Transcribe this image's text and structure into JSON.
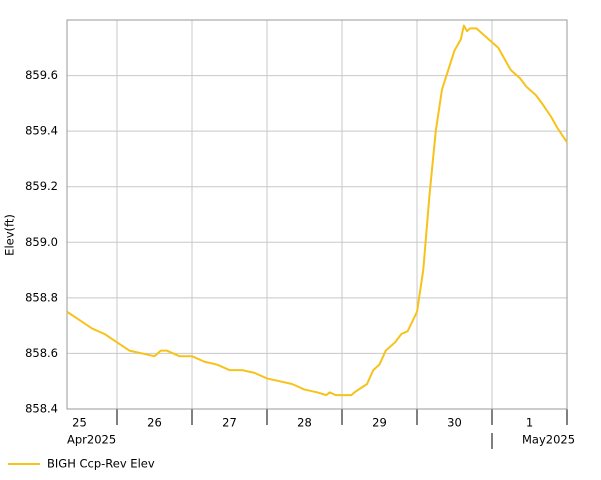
{
  "chart_data": {
    "type": "line",
    "y_label": "Elev(ft)",
    "xlim": [
      "2025-04-25T08:00",
      "2025-05-02T00:00"
    ],
    "xticks": [
      {
        "value": "2025-04-25T12:00",
        "label": "25"
      },
      {
        "value": "2025-04-26T12:00",
        "label": "26"
      },
      {
        "value": "2025-04-27T12:00",
        "label": "27"
      },
      {
        "value": "2025-04-28T12:00",
        "label": "28"
      },
      {
        "value": "2025-04-29T12:00",
        "label": "29"
      },
      {
        "value": "2025-04-30T12:00",
        "label": "30"
      },
      {
        "value": "2025-05-01T12:00",
        "label": "1"
      }
    ],
    "xgrid": [
      "2025-04-26T00:00",
      "2025-04-27T00:00",
      "2025-04-28T00:00",
      "2025-04-29T00:00",
      "2025-04-30T00:00",
      "2025-05-01T00:00",
      "2025-05-02T00:00"
    ],
    "month_labels": [
      {
        "value": "2025-04-25T08:00",
        "label": "Apr2025"
      },
      {
        "value": "2025-05-01T00:00",
        "label": "May2025"
      }
    ],
    "ylim": [
      858.4,
      859.8
    ],
    "yticks": [
      {
        "value": 858.4,
        "label": "858.4"
      },
      {
        "value": 858.6,
        "label": "858.6"
      },
      {
        "value": 858.8,
        "label": "858.8"
      },
      {
        "value": 859.0,
        "label": "859.0"
      },
      {
        "value": 859.2,
        "label": "859.2"
      },
      {
        "value": 859.4,
        "label": "859.4"
      },
      {
        "value": 859.6,
        "label": "859.6"
      }
    ],
    "grid": true,
    "legend": "bottom-left",
    "x": [
      "2025-04-25T08:00",
      "2025-04-25T12:00",
      "2025-04-25T16:00",
      "2025-04-25T20:00",
      "2025-04-26T00:00",
      "2025-04-26T04:00",
      "2025-04-26T08:00",
      "2025-04-26T12:00",
      "2025-04-26T14:00",
      "2025-04-26T16:00",
      "2025-04-26T20:00",
      "2025-04-27T00:00",
      "2025-04-27T04:00",
      "2025-04-27T08:00",
      "2025-04-27T12:00",
      "2025-04-27T16:00",
      "2025-04-27T20:00",
      "2025-04-28T00:00",
      "2025-04-28T04:00",
      "2025-04-28T08:00",
      "2025-04-28T10:00",
      "2025-04-28T12:00",
      "2025-04-28T16:00",
      "2025-04-28T19:00",
      "2025-04-28T20:00",
      "2025-04-28T22:00",
      "2025-04-29T00:00",
      "2025-04-29T03:00",
      "2025-04-29T04:00",
      "2025-04-29T08:00",
      "2025-04-29T10:00",
      "2025-04-29T12:00",
      "2025-04-29T14:00",
      "2025-04-29T17:00",
      "2025-04-29T19:00",
      "2025-04-29T21:00",
      "2025-04-30T00:00",
      "2025-04-30T02:00",
      "2025-04-30T04:00",
      "2025-04-30T06:00",
      "2025-04-30T08:00",
      "2025-04-30T10:00",
      "2025-04-30T12:00",
      "2025-04-30T14:00",
      "2025-04-30T15:00",
      "2025-04-30T16:00",
      "2025-04-30T17:00",
      "2025-04-30T19:00",
      "2025-04-30T20:00",
      "2025-04-30T23:00",
      "2025-05-01T02:00",
      "2025-05-01T04:00",
      "2025-05-01T06:00",
      "2025-05-01T09:00",
      "2025-05-01T11:00",
      "2025-05-01T14:00",
      "2025-05-01T16:00",
      "2025-05-01T19:00",
      "2025-05-01T21:00",
      "2025-05-02T00:00"
    ],
    "series": [
      {
        "name": "BIGH Ccp-Rev Elev",
        "color": "#f7c21a",
        "values": [
          858.75,
          858.72,
          858.69,
          858.67,
          858.64,
          858.61,
          858.6,
          858.59,
          858.61,
          858.61,
          858.59,
          858.59,
          858.57,
          858.56,
          858.54,
          858.54,
          858.53,
          858.51,
          858.5,
          858.49,
          858.48,
          858.47,
          858.46,
          858.45,
          858.46,
          858.45,
          858.45,
          858.45,
          858.46,
          858.49,
          858.54,
          858.56,
          858.61,
          858.64,
          858.67,
          858.68,
          858.75,
          858.9,
          859.17,
          859.4,
          859.55,
          859.62,
          859.69,
          859.73,
          859.78,
          859.76,
          859.77,
          859.77,
          859.76,
          859.73,
          859.7,
          859.66,
          859.62,
          859.59,
          859.56,
          859.53,
          859.5,
          859.45,
          859.41,
          859.36
        ]
      }
    ]
  }
}
